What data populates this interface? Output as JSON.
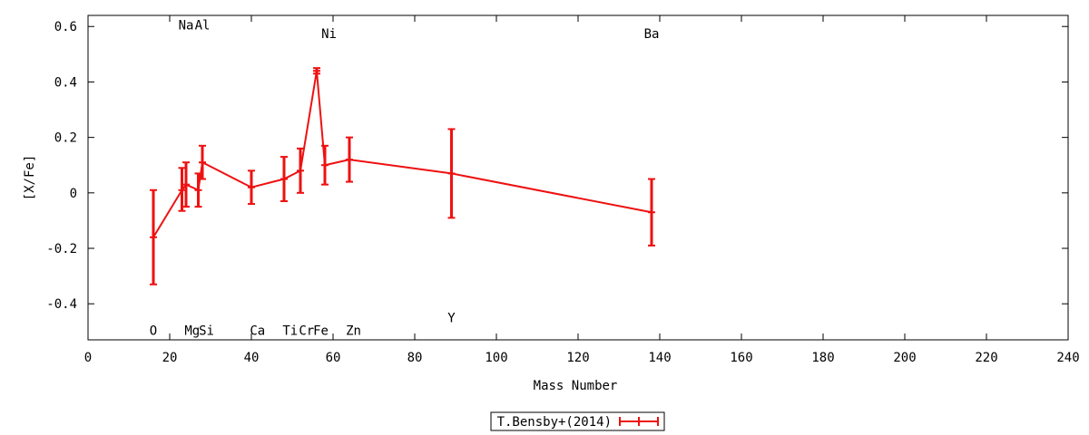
{
  "chart_data": {
    "type": "scatter",
    "xlabel": "Mass Number",
    "ylabel": "[X/Fe]",
    "xlim": [
      0,
      240
    ],
    "ylim": [
      -0.53,
      0.64
    ],
    "xticks": [
      "0",
      "20",
      "40",
      "60",
      "80",
      "100",
      "120",
      "140",
      "160",
      "180",
      "200",
      "220",
      "240"
    ],
    "yticks": [
      "-0.4",
      "-0.2",
      "0",
      "0.2",
      "0.4",
      "0.6"
    ],
    "ytick_values": [
      -0.4,
      -0.2,
      0,
      0.2,
      0.4,
      0.6
    ],
    "legend": {
      "position": "bottom-center",
      "label": "T.Bensby+(2014)"
    },
    "series": [
      {
        "name": "T.Bensby+(2014)",
        "color": "#ee1111",
        "points": [
          {
            "x": 16,
            "y": -0.16,
            "ylow": -0.33,
            "yhigh": 0.01
          },
          {
            "x": 23,
            "y": 0.01,
            "ylow": -0.065,
            "yhigh": 0.09
          },
          {
            "x": 24,
            "y": 0.03,
            "ylow": -0.05,
            "yhigh": 0.11
          },
          {
            "x": 27,
            "y": 0.01,
            "ylow": -0.05,
            "yhigh": 0.07
          },
          {
            "x": 28,
            "y": 0.11,
            "ylow": 0.05,
            "yhigh": 0.17
          },
          {
            "x": 40,
            "y": 0.02,
            "ylow": -0.04,
            "yhigh": 0.08
          },
          {
            "x": 48,
            "y": 0.05,
            "ylow": -0.03,
            "yhigh": 0.13
          },
          {
            "x": 52,
            "y": 0.08,
            "ylow": 0.0,
            "yhigh": 0.16
          },
          {
            "x": 56,
            "y": 0.44,
            "ylow": 0.43,
            "yhigh": 0.45
          },
          {
            "x": 58,
            "y": 0.1,
            "ylow": 0.03,
            "yhigh": 0.17
          },
          {
            "x": 64,
            "y": 0.12,
            "ylow": 0.04,
            "yhigh": 0.2
          },
          {
            "x": 89,
            "y": 0.07,
            "ylow": -0.09,
            "yhigh": 0.23
          },
          {
            "x": 138,
            "y": -0.07,
            "ylow": -0.19,
            "yhigh": 0.05
          }
        ]
      }
    ],
    "element_labels": [
      {
        "text": "O",
        "x": 16,
        "y": -0.495
      },
      {
        "text": "Mg",
        "x": 25.5,
        "y": -0.495
      },
      {
        "text": "Si",
        "x": 29,
        "y": -0.495
      },
      {
        "text": "Ca",
        "x": 41.5,
        "y": -0.495
      },
      {
        "text": "Ti",
        "x": 49.5,
        "y": -0.495
      },
      {
        "text": "Cr",
        "x": 53.5,
        "y": -0.495
      },
      {
        "text": "Fe",
        "x": 57,
        "y": -0.495
      },
      {
        "text": "Zn",
        "x": 65,
        "y": -0.495
      },
      {
        "text": "Y",
        "x": 89,
        "y": -0.45
      },
      {
        "text": "Na",
        "x": 24,
        "y": 0.605
      },
      {
        "text": "Al",
        "x": 28,
        "y": 0.605
      },
      {
        "text": "Ni",
        "x": 59,
        "y": 0.575
      },
      {
        "text": "Ba",
        "x": 138,
        "y": 0.575
      }
    ]
  }
}
